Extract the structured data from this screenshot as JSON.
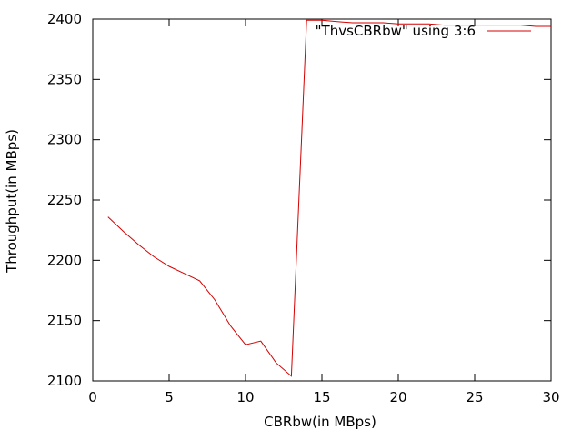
{
  "chart_data": {
    "type": "line",
    "title": "",
    "xlabel": "CBRbw(in MBps)",
    "ylabel": "Throughput(in MBps)",
    "xlim": [
      0,
      30
    ],
    "ylim": [
      2100,
      2400
    ],
    "xticks": [
      0,
      5,
      10,
      15,
      20,
      25,
      30
    ],
    "yticks": [
      2100,
      2150,
      2200,
      2250,
      2300,
      2350,
      2400
    ],
    "grid": false,
    "legend": "top-right",
    "series": [
      {
        "name": "\"ThvsCBRbw\" using 3:6",
        "color": "#d40000",
        "x": [
          1,
          2,
          3,
          4,
          5,
          6,
          7,
          8,
          9,
          10,
          11,
          12,
          13,
          14,
          15,
          16,
          17,
          18,
          19,
          20,
          21,
          22,
          23,
          24,
          25,
          26,
          27,
          28,
          29,
          30
        ],
        "y": [
          2236,
          2224,
          2213,
          2203,
          2195,
          2189,
          2183,
          2167,
          2146,
          2130,
          2133,
          2115,
          2104,
          2399,
          2399,
          2398,
          2397,
          2397,
          2397,
          2396,
          2396,
          2396,
          2395,
          2395,
          2395,
          2395,
          2395,
          2395,
          2394,
          2394
        ]
      }
    ]
  }
}
